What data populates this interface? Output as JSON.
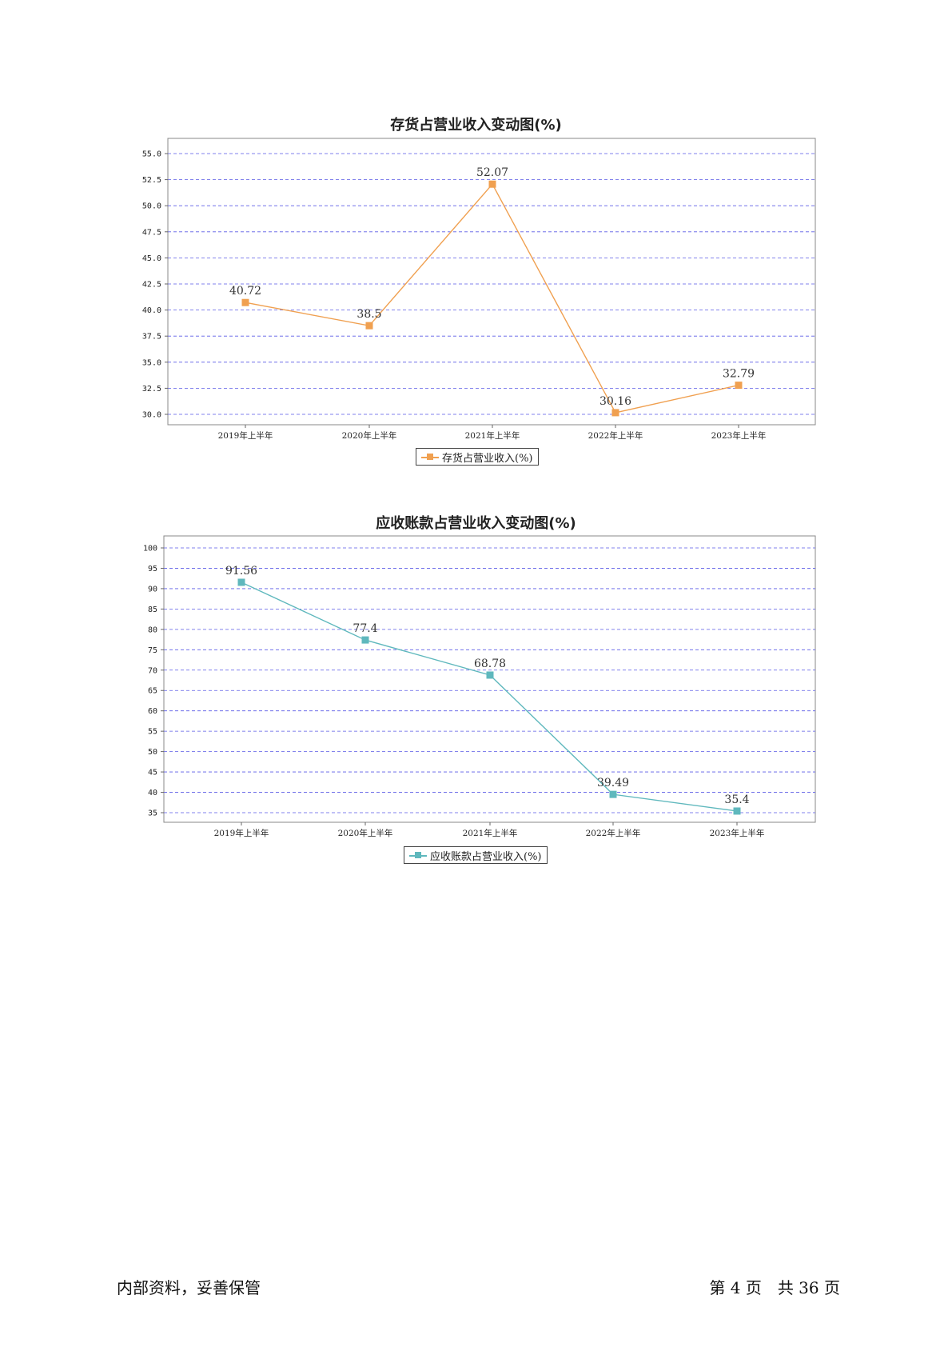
{
  "charts": [
    {
      "chart_data": {
        "type": "line",
        "title": "存货占营业收入变动图(%)",
        "categories": [
          "2019年上半年",
          "2020年上半年",
          "2021年上半年",
          "2022年上半年",
          "2023年上半年"
        ],
        "series": [
          {
            "name": "存货占营业收入(%)",
            "values": [
              40.72,
              38.5,
              52.07,
              30.16,
              32.79
            ]
          }
        ],
        "value_labels": [
          "40.72",
          "38.5",
          "52.07",
          "30.16",
          "32.79"
        ],
        "y_ticks": [
          "30.0",
          "32.5",
          "35.0",
          "37.5",
          "40.0",
          "42.5",
          "45.0",
          "47.5",
          "50.0",
          "52.5",
          "55.0"
        ],
        "ylim": [
          30,
          55
        ],
        "grid": true,
        "legend_position": "bottom-center",
        "color": "#f0a050"
      }
    },
    {
      "chart_data": {
        "type": "line",
        "title": "应收账款占营业收入变动图(%)",
        "categories": [
          "2019年上半年",
          "2020年上半年",
          "2021年上半年",
          "2022年上半年",
          "2023年上半年"
        ],
        "series": [
          {
            "name": "应收账款占营业收入(%)",
            "values": [
              91.56,
              77.4,
              68.78,
              39.49,
              35.4
            ]
          }
        ],
        "value_labels": [
          "91.56",
          "77.4",
          "68.78",
          "39.49",
          "35.4"
        ],
        "y_ticks": [
          "35",
          "40",
          "45",
          "50",
          "55",
          "60",
          "65",
          "70",
          "75",
          "80",
          "85",
          "90",
          "95",
          "100"
        ],
        "ylim": [
          35,
          100
        ],
        "grid": true,
        "legend_position": "bottom-center",
        "color": "#5fb8bd"
      }
    }
  ],
  "footer": {
    "left": "内部资料，妥善保管",
    "right": "第 4 页　共 36 页"
  }
}
